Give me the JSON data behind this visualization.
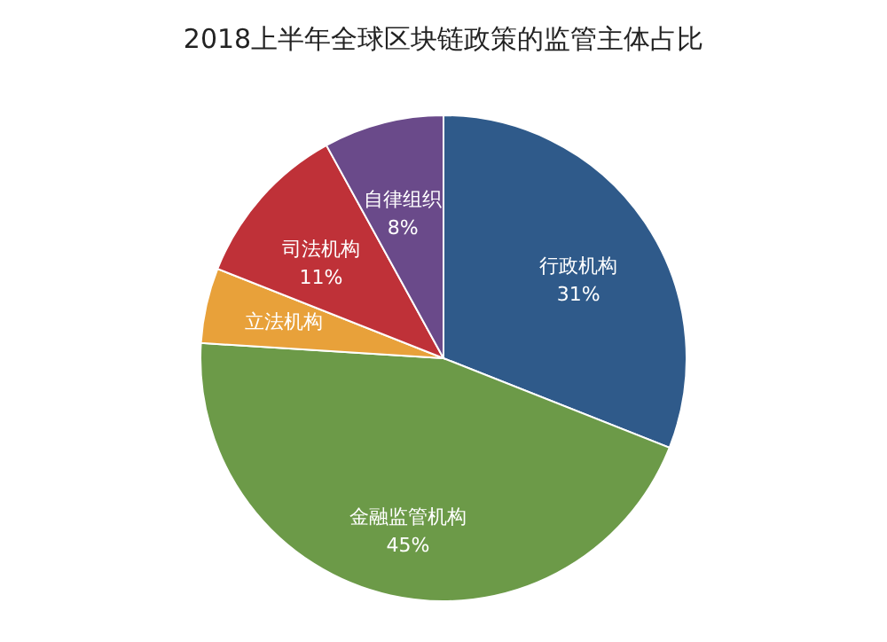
{
  "chart_data": {
    "type": "pie",
    "title": "2018上半年全球区块链政策的监管主体占比",
    "categories": [
      "行政机构",
      "金融监管机构",
      "立法机构",
      "司法机构",
      "自律组织"
    ],
    "values": [
      31,
      45,
      5,
      11,
      8
    ],
    "colors": [
      "#2f5a8a",
      "#6c9a48",
      "#e8a13a",
      "#bf3138",
      "#6a4a8a"
    ],
    "value_labels": [
      "31%",
      "45%",
      null,
      "11%",
      "8%"
    ]
  }
}
